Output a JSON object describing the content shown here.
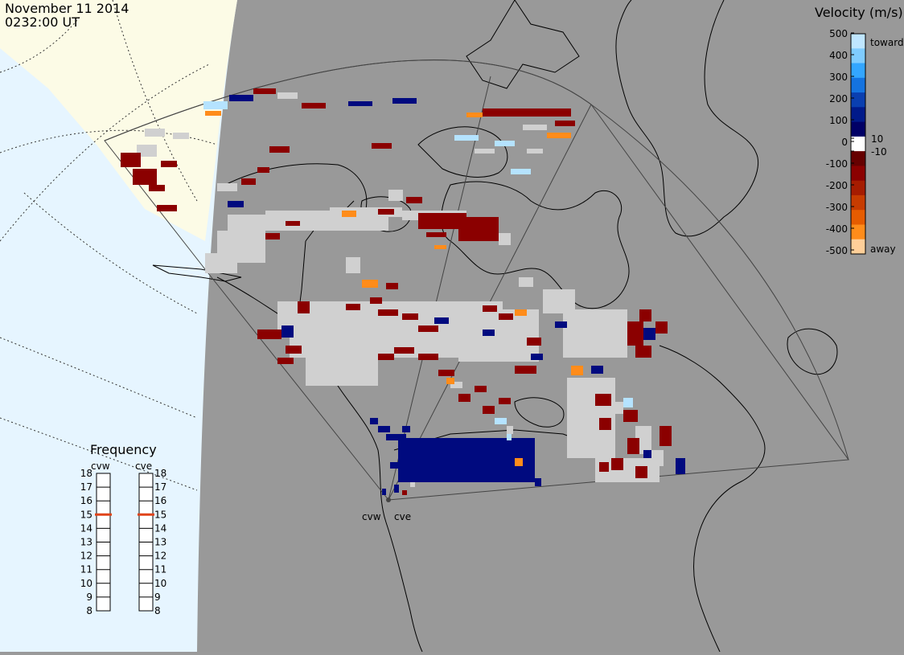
{
  "header": {
    "date": "November 11 2014",
    "time": "0232:00 UT"
  },
  "colors": {
    "night_gray": "#999999",
    "day_ice": "#e6f5ff",
    "day_land": "#fcfbe6",
    "scatter_gray": "#d0d0d0",
    "dark_red": "#8b0000",
    "dark_blue": "#000a7f",
    "orange": "#ff8c1a",
    "light_blue": "#b5e3ff"
  },
  "velocity_scale": {
    "title": "Velocity (m/s)",
    "ticks": [
      "500",
      "400",
      "300",
      "200",
      "100",
      "10",
      "0",
      "-10",
      "-100",
      "-200",
      "-300",
      "-400",
      "-500"
    ],
    "toward_label": "toward",
    "away_label": "away",
    "colors_top_to_bottom": [
      "#bfe6ff",
      "#7fccff",
      "#33a6ff",
      "#1473e0",
      "#0a3fb0",
      "#001a8a",
      "#000066",
      "#ffffff",
      "#660000",
      "#8b0000",
      "#a61c00",
      "#c73c00",
      "#e65c00",
      "#ff8c1a",
      "#ffcf99"
    ]
  },
  "frequency_panel": {
    "title": "Frequency",
    "radars": [
      "cvw",
      "cve"
    ],
    "ticks": [
      "18",
      "17",
      "16",
      "15",
      "14",
      "13",
      "12",
      "11",
      "10",
      "9",
      "8"
    ],
    "values_mhz": [
      15,
      15
    ]
  },
  "map": {
    "site_labels": [
      "cvw",
      "cve"
    ]
  }
}
